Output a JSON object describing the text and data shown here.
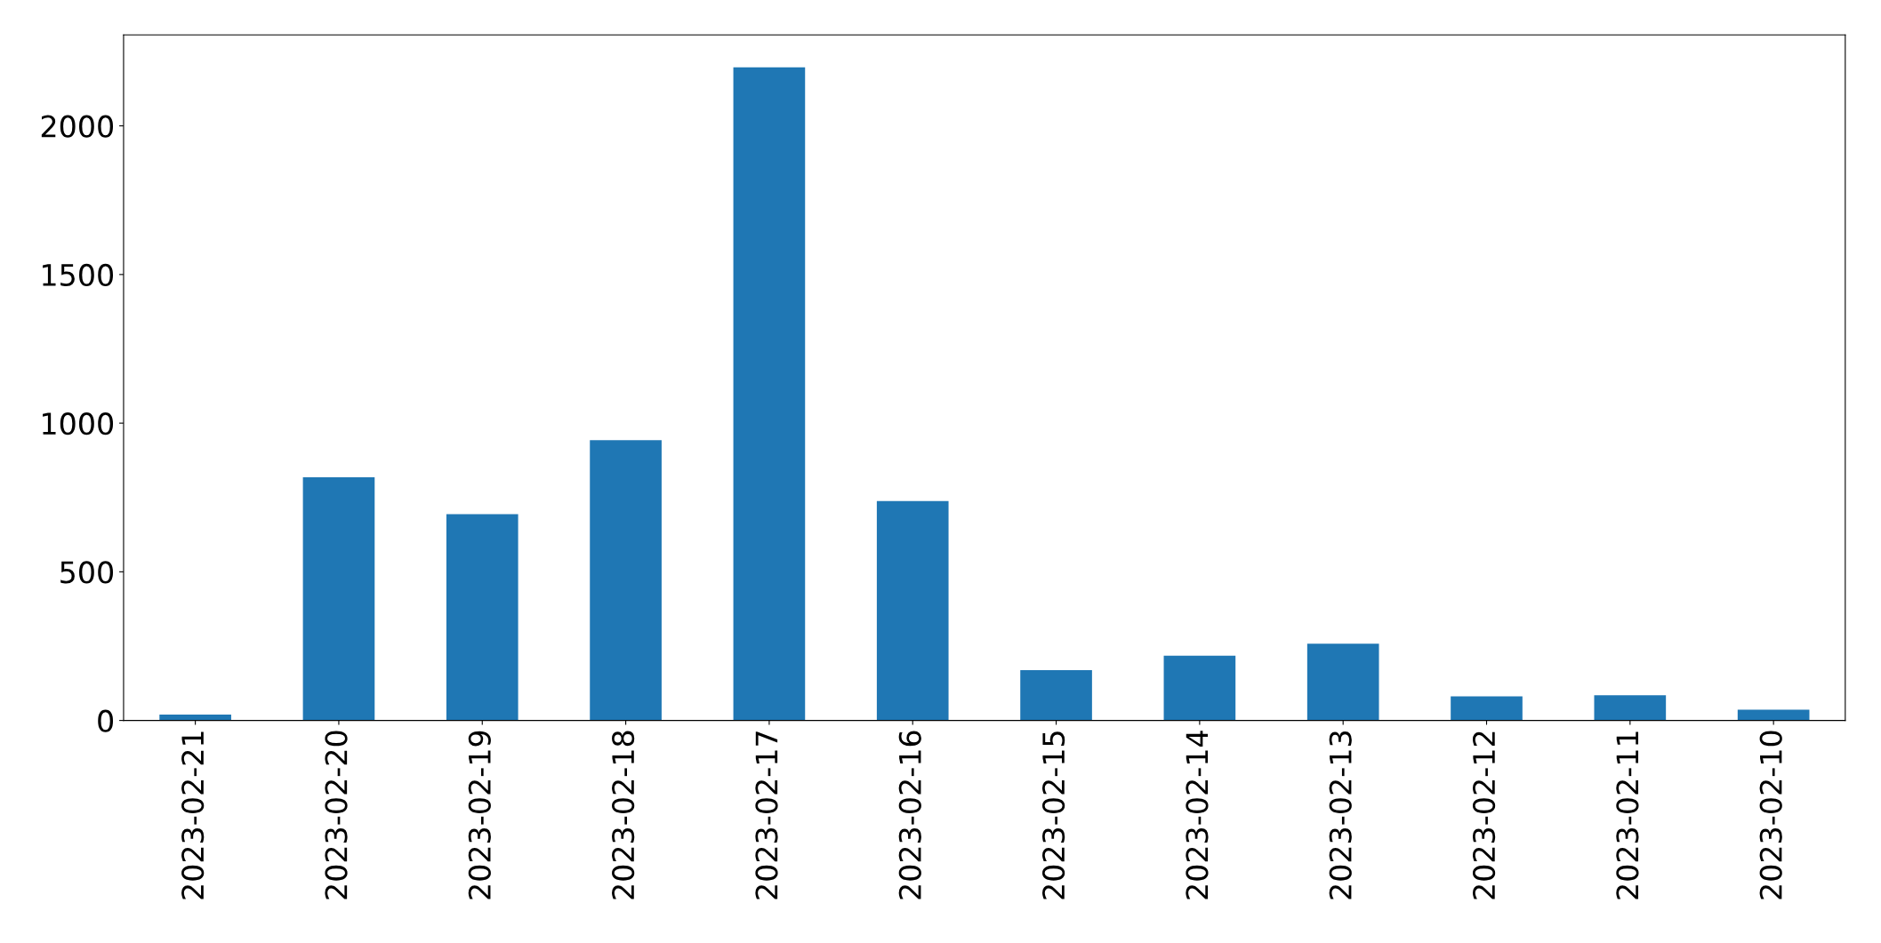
{
  "chart_data": {
    "type": "bar",
    "categories": [
      "2023-02-21",
      "2023-02-20",
      "2023-02-19",
      "2023-02-18",
      "2023-02-17",
      "2023-02-16",
      "2023-02-15",
      "2023-02-14",
      "2023-02-13",
      "2023-02-12",
      "2023-02-11",
      "2023-02-10"
    ],
    "values": [
      20,
      818,
      694,
      943,
      2197,
      738,
      169,
      218,
      258,
      81,
      85,
      36
    ],
    "color": "#1f77b4",
    "ylim": [
      0,
      2306
    ],
    "yticks": [
      0,
      500,
      1000,
      1500,
      2000
    ],
    "grid": false
  }
}
